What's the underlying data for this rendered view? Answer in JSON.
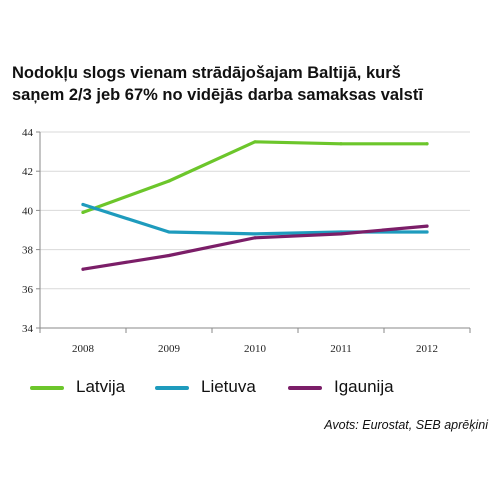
{
  "chart_data": {
    "type": "line",
    "title_lines": [
      "Nodokļu slogs vienam strādājošajam Baltijā, kurš",
      "saņem 2/3 jeb 67% no vidējās darba samaksas valstī"
    ],
    "x": [
      "2008",
      "2009",
      "2010",
      "2011",
      "2012"
    ],
    "series": [
      {
        "name": "Latvija",
        "color": "#6cc62b",
        "values": [
          39.9,
          41.5,
          43.5,
          43.4,
          43.4
        ]
      },
      {
        "name": "Lietuva",
        "color": "#1e9bbd",
        "values": [
          40.3,
          38.9,
          38.8,
          38.9,
          38.9
        ]
      },
      {
        "name": "Igaunija",
        "color": "#7b1e68",
        "values": [
          37.0,
          37.7,
          38.6,
          38.8,
          39.2
        ]
      }
    ],
    "ylim": [
      34,
      44
    ],
    "yticks": [
      34,
      36,
      38,
      40,
      42,
      44
    ],
    "grid": true,
    "legend_position": "bottom",
    "source": "Avots: Eurostat, SEB aprēķini"
  }
}
